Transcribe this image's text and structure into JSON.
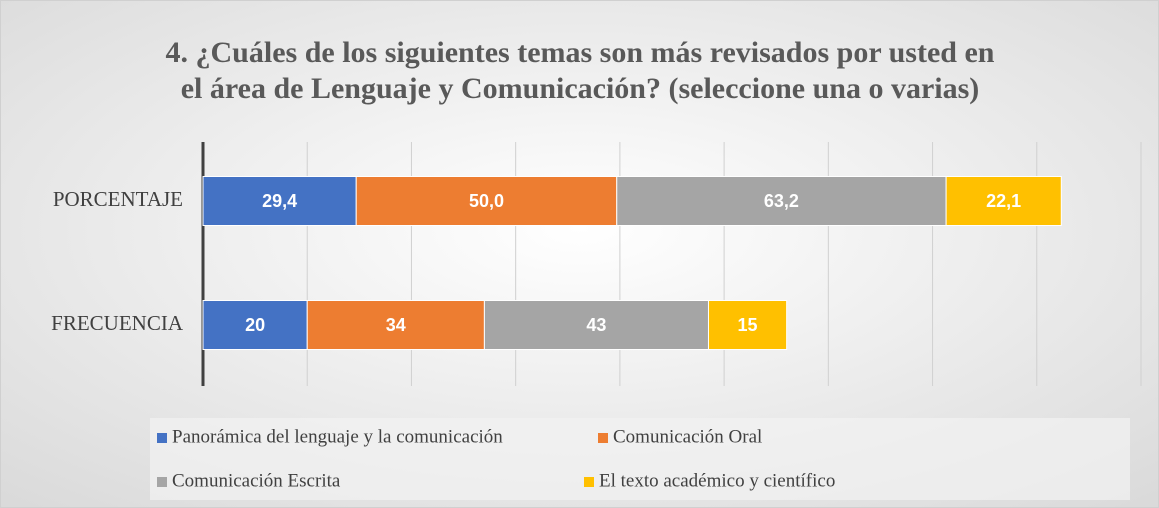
{
  "chart_data": {
    "type": "stacked_barh",
    "title": "4. ¿Cuáles de los siguientes temas son más revisados por usted en el área de Lenguaje y Comunicación? (seleccione una o varias)",
    "title_lines": [
      "4. ¿Cuáles de los siguientes temas son más revisados por usted en",
      "el área de Lenguaje y Comunicación? (seleccione una o varias)"
    ],
    "categories": [
      "PORCENTAJE",
      "FRECUENCIA"
    ],
    "series": [
      {
        "name": "Panorámica del lenguaje y la comunicación",
        "color": "#4472c4",
        "values": [
          29.4,
          20
        ],
        "value_labels": [
          "29,4",
          "20"
        ]
      },
      {
        "name": "Comunicación Oral",
        "color": "#ed7d31",
        "values": [
          50.0,
          34
        ],
        "value_labels": [
          "50,0",
          "34"
        ]
      },
      {
        "name": "Comunicación Escrita",
        "color": "#a5a5a5",
        "values": [
          63.2,
          43
        ],
        "value_labels": [
          "63,2",
          "43"
        ]
      },
      {
        "name": "El texto académico y científico",
        "color": "#ffc000",
        "values": [
          22.1,
          15
        ],
        "value_labels": [
          "22,1",
          "15"
        ]
      }
    ],
    "xlim": [
      0,
      180
    ],
    "xticks": [
      0,
      20,
      40,
      60,
      80,
      100,
      120,
      140,
      160,
      180
    ],
    "grid": true,
    "legend": "bottom"
  }
}
